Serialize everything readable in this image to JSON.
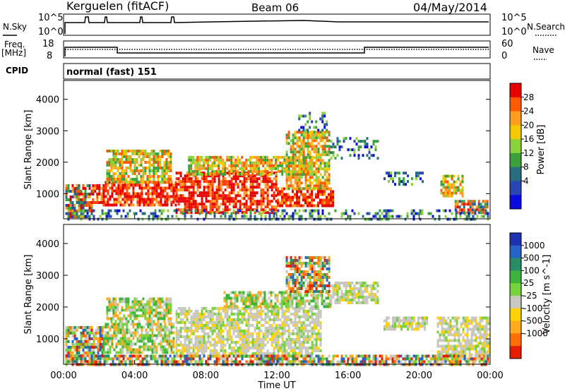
{
  "header": {
    "station": "Kerguelen (fitACF)",
    "beam": "Beam 06",
    "date": "04/May/2014"
  },
  "top_panels": {
    "nsky_label": "N.Sky",
    "nsearch_label": "N.Search",
    "freq_label_1": "Freq.",
    "freq_label_2": "[MHz]",
    "nave_label": "Nave",
    "cpid_label": "CPID",
    "cpid_value": "normal (fast) 151",
    "noise_left_ticks": [
      "10^5",
      "10^0"
    ],
    "noise_right_ticks": [
      "10^5",
      "10^0"
    ],
    "freq_ticks": [
      "18",
      "8"
    ],
    "nave_ticks": [
      "60",
      "0"
    ]
  },
  "chart_data": [
    {
      "type": "heatmap",
      "title": "",
      "xlabel": "",
      "ylabel": "Slant Range [km]",
      "xlim_hours": [
        0,
        24
      ],
      "ylim_km": [
        200,
        4600
      ],
      "x_ticks": [
        "00:00",
        "04:00",
        "08:00",
        "12:00",
        "16:00",
        "20:00",
        "00:00"
      ],
      "y_ticks": [
        1000,
        2000,
        3000,
        4000
      ],
      "colorbar": {
        "label": "Power [dB]",
        "ticks": [
          "28",
          "24",
          "20",
          "16",
          "12",
          "8",
          "4"
        ],
        "colors": [
          "#e60000",
          "#ff5a00",
          "#ff9d1e",
          "#f5c800",
          "#8cd23c",
          "#3ca03c",
          "#286e82",
          "#2846b4",
          "#0a0adc"
        ]
      },
      "regions": [
        {
          "t0": 0.1,
          "t1": 1.6,
          "r0": 300,
          "r1": 1300,
          "level": "mixed"
        },
        {
          "t0": 1.6,
          "t1": 2.2,
          "r0": 700,
          "r1": 1300,
          "level": "high"
        },
        {
          "t0": 2.2,
          "t1": 6.3,
          "r0": 600,
          "r1": 1400,
          "level": "high"
        },
        {
          "t0": 2.4,
          "t1": 6.0,
          "r0": 1400,
          "r1": 2400,
          "level": "mid"
        },
        {
          "t0": 6.3,
          "t1": 12.0,
          "r0": 400,
          "r1": 1700,
          "level": "high"
        },
        {
          "t0": 7.0,
          "t1": 14.0,
          "r0": 1600,
          "r1": 2200,
          "level": "mid"
        },
        {
          "t0": 12.0,
          "t1": 15.2,
          "r0": 600,
          "r1": 1200,
          "level": "high"
        },
        {
          "t0": 12.5,
          "t1": 15.0,
          "r0": 1200,
          "r1": 3000,
          "level": "mid"
        },
        {
          "t0": 13.2,
          "t1": 14.9,
          "r0": 3000,
          "r1": 3600,
          "level": "low"
        },
        {
          "t0": 15.0,
          "t1": 17.7,
          "r0": 2100,
          "r1": 2800,
          "level": "low"
        },
        {
          "t0": 18.0,
          "t1": 20.2,
          "r0": 1300,
          "r1": 1700,
          "level": "low"
        },
        {
          "t0": 21.2,
          "t1": 22.5,
          "r0": 900,
          "r1": 1600,
          "level": "mid"
        },
        {
          "t0": 22.0,
          "t1": 23.9,
          "r0": 400,
          "r1": 800,
          "level": "mixed"
        },
        {
          "t0": 0.1,
          "t1": 23.9,
          "r0": 200,
          "r1": 500,
          "level": "low"
        }
      ]
    },
    {
      "type": "heatmap",
      "title": "",
      "xlabel": "Time UT",
      "ylabel": "Slant Range [km]",
      "xlim_hours": [
        0,
        24
      ],
      "ylim_km": [
        200,
        4600
      ],
      "x_ticks": [
        "00:00",
        "04:00",
        "08:00",
        "12:00",
        "16:00",
        "20:00",
        "00:00"
      ],
      "y_ticks": [
        1000,
        2000,
        3000,
        4000
      ],
      "colorbar": {
        "label": "Velocity [m s^-1]",
        "ticks": [
          "1000",
          "500",
          "100",
          "25",
          "-25",
          "-100",
          "-500",
          "-1000"
        ],
        "colors": [
          "#1e32b4",
          "#2864c8",
          "#288c64",
          "#3cb43c",
          "#78d23c",
          "#c8c8c0",
          "#ffd200",
          "#ffaa1e",
          "#ff6e00",
          "#e61e00"
        ]
      },
      "regions": [
        {
          "t0": 0.1,
          "t1": 2.2,
          "r0": 300,
          "r1": 1400,
          "level": "mixed"
        },
        {
          "t0": 2.2,
          "t1": 6.2,
          "r0": 600,
          "r1": 1500,
          "level": "positive"
        },
        {
          "t0": 2.4,
          "t1": 6.0,
          "r0": 1500,
          "r1": 2300,
          "level": "positive"
        },
        {
          "t0": 6.3,
          "t1": 14.5,
          "r0": 400,
          "r1": 2000,
          "level": "near-zero"
        },
        {
          "t0": 9.0,
          "t1": 15.0,
          "r0": 2000,
          "r1": 2500,
          "level": "positive"
        },
        {
          "t0": 12.5,
          "t1": 15.0,
          "r0": 2500,
          "r1": 3600,
          "level": "mixed"
        },
        {
          "t0": 15.0,
          "t1": 17.7,
          "r0": 2100,
          "r1": 2800,
          "level": "near-zero"
        },
        {
          "t0": 18.0,
          "t1": 20.5,
          "r0": 1300,
          "r1": 1700,
          "level": "near-zero"
        },
        {
          "t0": 21.0,
          "t1": 23.9,
          "r0": 300,
          "r1": 1700,
          "level": "near-zero"
        },
        {
          "t0": 0.1,
          "t1": 23.9,
          "r0": 200,
          "r1": 500,
          "level": "mixed"
        }
      ]
    }
  ]
}
